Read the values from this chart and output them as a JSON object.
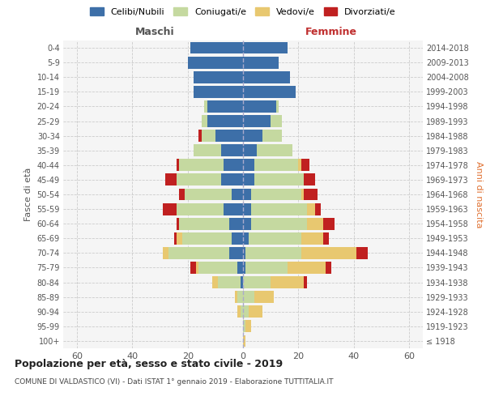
{
  "age_groups": [
    "100+",
    "95-99",
    "90-94",
    "85-89",
    "80-84",
    "75-79",
    "70-74",
    "65-69",
    "60-64",
    "55-59",
    "50-54",
    "45-49",
    "40-44",
    "35-39",
    "30-34",
    "25-29",
    "20-24",
    "15-19",
    "10-14",
    "5-9",
    "0-4"
  ],
  "birth_years": [
    "≤ 1918",
    "1919-1923",
    "1924-1928",
    "1929-1933",
    "1934-1938",
    "1939-1943",
    "1944-1948",
    "1949-1953",
    "1954-1958",
    "1959-1963",
    "1964-1968",
    "1969-1973",
    "1974-1978",
    "1979-1983",
    "1984-1988",
    "1989-1993",
    "1994-1998",
    "1999-2003",
    "2004-2008",
    "2009-2013",
    "2014-2018"
  ],
  "maschi": {
    "celibi": [
      0,
      0,
      0,
      0,
      1,
      2,
      5,
      4,
      5,
      7,
      4,
      8,
      7,
      8,
      10,
      13,
      13,
      18,
      18,
      20,
      19
    ],
    "coniugati": [
      0,
      0,
      1,
      2,
      8,
      14,
      22,
      18,
      18,
      17,
      17,
      16,
      16,
      10,
      5,
      2,
      1,
      0,
      0,
      0,
      0
    ],
    "vedovi": [
      0,
      0,
      1,
      1,
      2,
      1,
      2,
      2,
      0,
      0,
      0,
      0,
      0,
      0,
      0,
      0,
      0,
      0,
      0,
      0,
      0
    ],
    "divorziati": [
      0,
      0,
      0,
      0,
      0,
      2,
      0,
      1,
      1,
      5,
      2,
      4,
      1,
      0,
      1,
      0,
      0,
      0,
      0,
      0,
      0
    ]
  },
  "femmine": {
    "nubili": [
      0,
      0,
      0,
      0,
      0,
      1,
      1,
      2,
      3,
      3,
      3,
      4,
      4,
      5,
      7,
      10,
      12,
      19,
      17,
      13,
      16
    ],
    "coniugate": [
      0,
      1,
      2,
      4,
      10,
      15,
      20,
      19,
      20,
      20,
      18,
      18,
      16,
      13,
      7,
      4,
      1,
      0,
      0,
      0,
      0
    ],
    "vedove": [
      1,
      2,
      5,
      7,
      12,
      14,
      20,
      8,
      6,
      3,
      1,
      0,
      1,
      0,
      0,
      0,
      0,
      0,
      0,
      0,
      0
    ],
    "divorziate": [
      0,
      0,
      0,
      0,
      1,
      2,
      4,
      2,
      4,
      2,
      5,
      4,
      3,
      0,
      0,
      0,
      0,
      0,
      0,
      0,
      0
    ]
  },
  "colors": {
    "celibi_nubili": "#3d6fa8",
    "coniugati": "#c5d9a0",
    "vedovi": "#e8c870",
    "divorziati": "#c02020"
  },
  "xlim": 65,
  "title": "Popolazione per età, sesso e stato civile - 2019",
  "subtitle": "COMUNE DI VALDASTICO (VI) - Dati ISTAT 1° gennaio 2019 - Elaborazione TUTTITALIA.IT",
  "ylabel": "Fasce di età",
  "ylabel_right": "Anni di nascita",
  "legend_labels": [
    "Celibi/Nubili",
    "Coniugati/e",
    "Vedovi/e",
    "Divorziati/e"
  ],
  "maschi_label": "Maschi",
  "femmine_label": "Femmine",
  "bg_color": "#f5f5f5"
}
